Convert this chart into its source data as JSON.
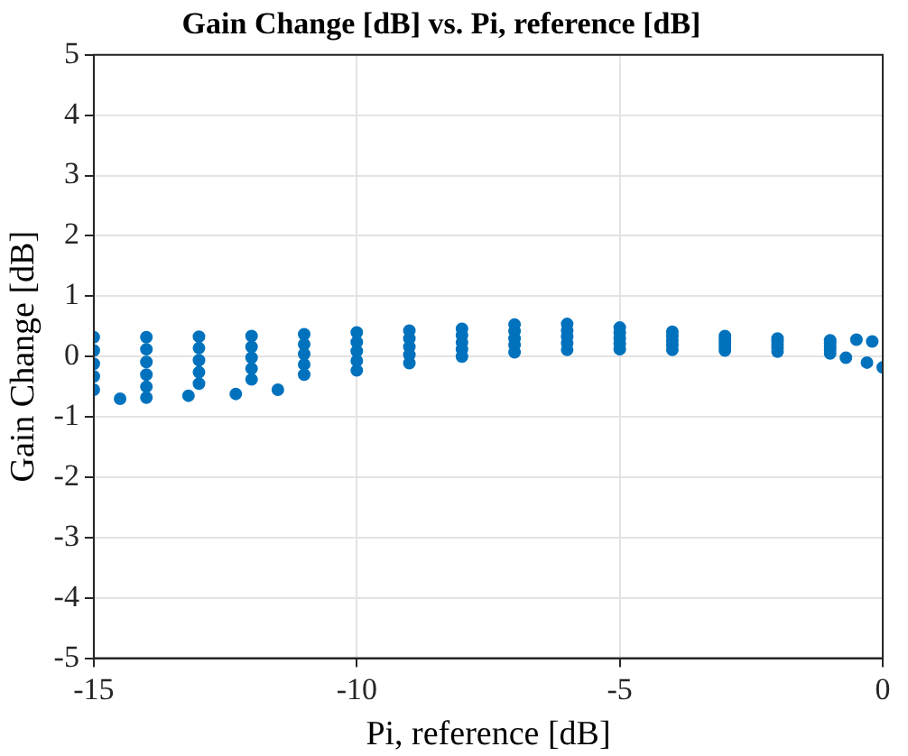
{
  "chart_data": {
    "type": "scatter",
    "title": "Gain Change [dB] vs. Pi, reference [dB]",
    "xlabel": "Pi, reference [dB]",
    "ylabel": "Gain Change [dB]",
    "x": [
      -15,
      -15,
      -15,
      -15,
      -15,
      -14,
      -14,
      -14,
      -14,
      -14,
      -13,
      -13,
      -13,
      -13,
      -13,
      -12,
      -12,
      -12,
      -12,
      -12,
      -11,
      -11,
      -11,
      -11,
      -11,
      -10,
      -10,
      -10,
      -10,
      -10,
      -9,
      -9,
      -9,
      -9,
      -9,
      -8,
      -8,
      -8,
      -8,
      -8,
      -7,
      -7,
      -7,
      -7,
      -7,
      -6,
      -6,
      -6,
      -6,
      -6,
      -5,
      -5,
      -5,
      -5,
      -5,
      -4,
      -4,
      -4,
      -4,
      -4,
      -3,
      -3,
      -3,
      -3,
      -3,
      -2,
      -2,
      -2,
      -2,
      -2,
      -1,
      -1,
      -1,
      -1,
      -1,
      -14.5,
      -14,
      -13.2,
      -12.3,
      -11.5,
      -0.5,
      -0.2,
      0,
      -0.3,
      -0.7
    ],
    "series": [
      {
        "color": "#0072bd",
        "values": [
          0.32,
          0.1,
          -0.12,
          -0.33,
          -0.55,
          0.32,
          0.12,
          -0.09,
          -0.3,
          -0.5,
          0.33,
          0.14,
          -0.06,
          -0.26,
          -0.45,
          0.34,
          0.16,
          -0.02,
          -0.2,
          -0.38,
          0.37,
          0.2,
          0.04,
          -0.13,
          -0.3,
          0.4,
          0.24,
          0.09,
          -0.07,
          -0.23,
          0.43,
          0.3,
          0.16,
          0.03,
          -0.11,
          0.46,
          0.35,
          0.23,
          0.12,
          0.0,
          0.53,
          0.42,
          0.3,
          0.19,
          0.07,
          0.54,
          0.43,
          0.33,
          0.22,
          0.11,
          0.48,
          0.39,
          0.3,
          0.21,
          0.12,
          0.41,
          0.34,
          0.26,
          0.19,
          0.11,
          0.34,
          0.28,
          0.22,
          0.16,
          0.1,
          0.3,
          0.25,
          0.19,
          0.14,
          0.08,
          0.27,
          0.22,
          0.16,
          0.11,
          0.05,
          -0.7,
          -0.68,
          -0.65,
          -0.62,
          -0.55,
          0.28,
          0.25,
          -0.18,
          -0.1,
          -0.02
        ]
      }
    ],
    "xlim": [
      -15,
      0
    ],
    "xticks": [
      -15,
      -10,
      -5,
      0
    ],
    "ylim": [
      -5,
      5
    ],
    "yticks": [
      -5,
      -4,
      -3,
      -2,
      -1,
      0,
      1,
      2,
      3,
      4,
      5
    ],
    "grid": true,
    "marker": "circle",
    "legend": false
  }
}
